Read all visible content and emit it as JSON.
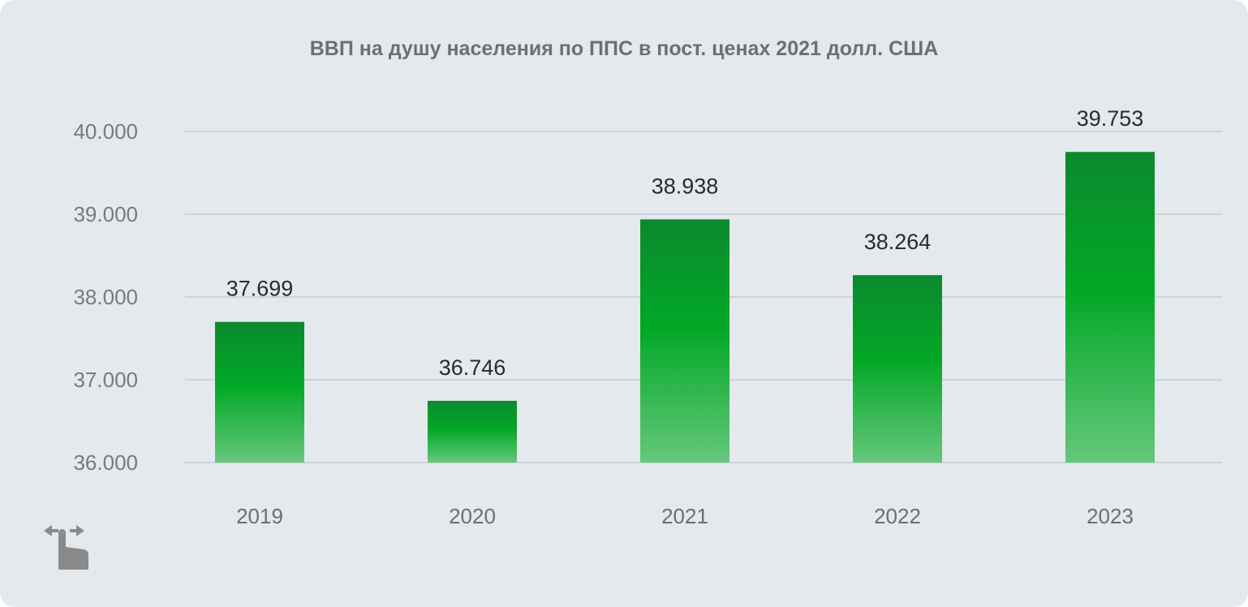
{
  "chart_data": {
    "type": "bar",
    "title": "ВВП на душу населения по ППС в пост. ценах 2021 долл. США",
    "xlabel": "",
    "ylabel": "",
    "categories": [
      "2019",
      "2020",
      "2021",
      "2022",
      "2023"
    ],
    "values": [
      37699,
      36746,
      38938,
      38264,
      39753
    ],
    "value_labels": [
      "37.699",
      "36.746",
      "38.938",
      "38.264",
      "39.753"
    ],
    "ylim": [
      36000,
      40000
    ],
    "yticks": [
      36000,
      37000,
      38000,
      39000,
      40000
    ],
    "ytick_labels": [
      "36.000",
      "37.000",
      "38.000",
      "39.000",
      "40.000"
    ],
    "grid": true,
    "legend": "none",
    "bar_color_top": "#0b8a2e",
    "bar_color_mid": "#02a826",
    "bar_color_bottom": "#66c77c"
  },
  "controls": {
    "swipe_icon": "swipe-hand-icon"
  }
}
